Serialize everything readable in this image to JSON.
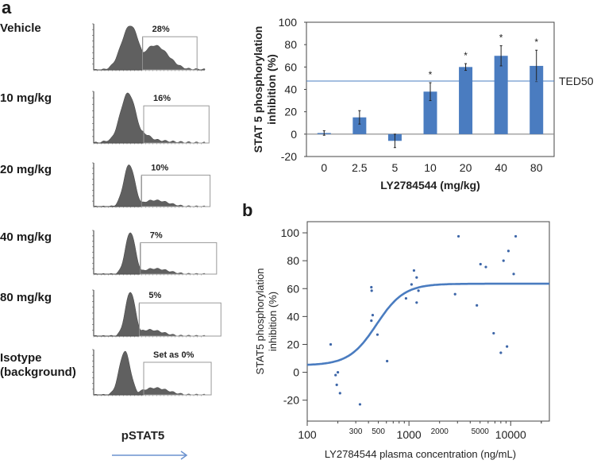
{
  "panels": {
    "a_letter": "a",
    "b_letter": "b"
  },
  "histograms": {
    "axis_marker_label": "pSTAT5",
    "items": [
      {
        "label": "Vehicle",
        "percent_label": "28%",
        "percent": 28,
        "shape": "vehicle"
      },
      {
        "label": "10 mg/kg",
        "percent_label": "16%",
        "percent": 16,
        "shape": "d10"
      },
      {
        "label": "20 mg/kg",
        "percent_label": "10%",
        "percent": 10,
        "shape": "d20"
      },
      {
        "label": "40 mg/kg",
        "percent_label": "7%",
        "percent": 7,
        "shape": "d40"
      },
      {
        "label": "80 mg/kg",
        "percent_label": "5%",
        "percent": 5,
        "shape": "d80"
      },
      {
        "label": "Isotype\n(background)",
        "percent_label": "Set as 0%",
        "percent": 0,
        "shape": "isotype"
      }
    ]
  },
  "colors": {
    "bar": "#4a7cc0",
    "line": "#4a7cc0",
    "point": "#3d66a8",
    "hist_fill": "#606060",
    "arrow": "#6b92cf",
    "axis": "#333333",
    "zero_line": "#888888"
  },
  "chart_data": [
    {
      "type": "bar",
      "title": "",
      "xlabel": "LY2784544 (mg/kg)",
      "ylabel": "STAT 5 phosphorylation inhibition (%)",
      "categories": [
        "0",
        "2.5",
        "5",
        "10",
        "20",
        "40",
        "80"
      ],
      "values": [
        1,
        15,
        -6,
        38,
        60,
        70,
        61
      ],
      "errors": [
        2,
        6,
        6,
        8,
        3,
        9,
        14
      ],
      "significance": [
        "",
        "",
        "",
        "*",
        "*",
        "*",
        "*"
      ],
      "ylim": [
        -20,
        100
      ],
      "yticks": [
        100,
        80,
        60,
        40,
        20,
        0,
        -20
      ],
      "reference_line": {
        "label": "TED50",
        "value": 47.5
      },
      "grid": false,
      "legend": "none"
    },
    {
      "type": "scatter",
      "title": "",
      "xlabel": "LY2784544 plasma concentration (ng/mL)",
      "ylabel": "STAT5 phosphorylation inhibition (%)",
      "xscale": "log",
      "xlim": [
        100,
        24000
      ],
      "ylim": [
        -35,
        108
      ],
      "xticks_major": [
        "100",
        "1000",
        "10000"
      ],
      "xticks_minor_labels": [
        "300",
        "500",
        "2000",
        "5000"
      ],
      "yticks": [
        100,
        80,
        60,
        40,
        20,
        0,
        -20
      ],
      "points": [
        {
          "x": 170,
          "y": 20
        },
        {
          "x": 190,
          "y": -2
        },
        {
          "x": 200,
          "y": 0
        },
        {
          "x": 195,
          "y": -9
        },
        {
          "x": 210,
          "y": -15
        },
        {
          "x": 330,
          "y": -23
        },
        {
          "x": 610,
          "y": 8
        },
        {
          "x": 427,
          "y": 61
        },
        {
          "x": 430,
          "y": 58.5
        },
        {
          "x": 440,
          "y": 41
        },
        {
          "x": 427,
          "y": 37
        },
        {
          "x": 490,
          "y": 27
        },
        {
          "x": 935,
          "y": 53
        },
        {
          "x": 1060,
          "y": 63
        },
        {
          "x": 1120,
          "y": 73
        },
        {
          "x": 1190,
          "y": 68
        },
        {
          "x": 1240,
          "y": 58.5
        },
        {
          "x": 1190,
          "y": 50
        },
        {
          "x": 3070,
          "y": 97.5
        },
        {
          "x": 11200,
          "y": 97.5
        },
        {
          "x": 9500,
          "y": 87
        },
        {
          "x": 8500,
          "y": 80
        },
        {
          "x": 5050,
          "y": 77.5
        },
        {
          "x": 5700,
          "y": 75.5
        },
        {
          "x": 10700,
          "y": 70.5
        },
        {
          "x": 2840,
          "y": 56
        },
        {
          "x": 4650,
          "y": 48
        },
        {
          "x": 6800,
          "y": 28
        },
        {
          "x": 9200,
          "y": 18.5
        },
        {
          "x": 8000,
          "y": 14
        }
      ],
      "fit_curve": {
        "model": "sigmoid (Emax)",
        "bottom": 5,
        "top": 63.5,
        "ec50": 480,
        "hill": 3.2
      },
      "grid": false,
      "legend": "none"
    }
  ]
}
